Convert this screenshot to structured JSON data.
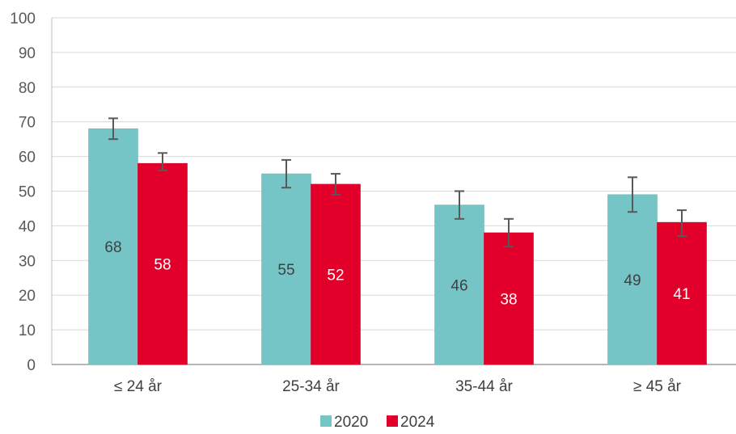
{
  "chart_data": {
    "type": "bar",
    "categories": [
      "≤ 24 år",
      "25-34 år",
      "35-44 år",
      "≥ 45 år"
    ],
    "series": [
      {
        "name": "2020",
        "color": "#76c5c6",
        "values": [
          68,
          55,
          46,
          49
        ],
        "error_low": [
          65,
          51,
          42,
          44
        ],
        "error_high": [
          71,
          59,
          50,
          54
        ],
        "label_color": "#404040"
      },
      {
        "name": "2024",
        "color": "#e2002a",
        "values": [
          58,
          52,
          38,
          41
        ],
        "error_low": [
          56,
          49,
          34,
          37
        ],
        "error_high": [
          61,
          55,
          42,
          44.5
        ],
        "label_color": "#ffffff"
      }
    ],
    "ylim": [
      0,
      100
    ],
    "yticks": [
      "0",
      "10",
      "20",
      "30",
      "40",
      "50",
      "60",
      "70",
      "80",
      "90",
      "100"
    ],
    "grid": true,
    "legend_position": "bottom"
  }
}
